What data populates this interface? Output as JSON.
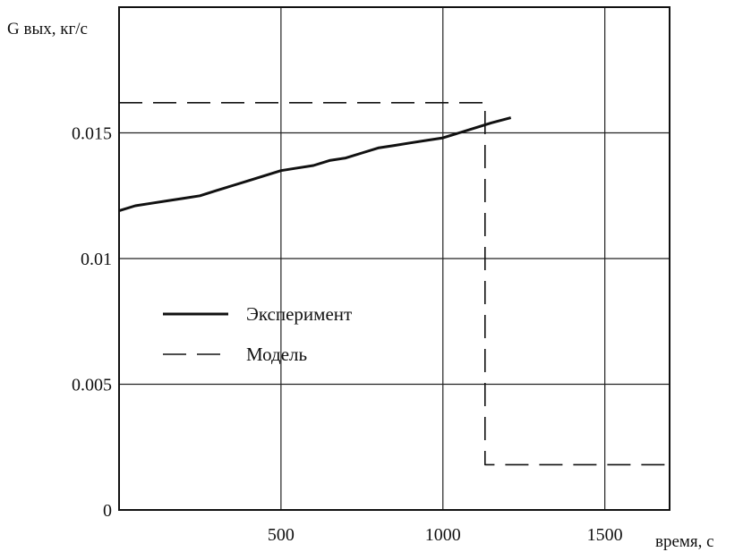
{
  "chart_data": {
    "type": "line",
    "title": "",
    "ylabel": "G вых, кг/с",
    "xlabel": "время, с",
    "xlim": [
      0,
      1700
    ],
    "ylim": [
      0,
      0.02
    ],
    "x_ticks": [
      500,
      1000,
      1500
    ],
    "x_tick_labels": [
      "500",
      "1000",
      "1500"
    ],
    "y_ticks": [
      0,
      0.005,
      0.01,
      0.015
    ],
    "y_tick_labels": [
      "0",
      "0.005",
      "0.01",
      "0.015"
    ],
    "grid": true,
    "legend_position": "center-left",
    "series": [
      {
        "name": "Эксперимент",
        "style": "solid",
        "color": "#111111",
        "x": [
          0,
          50,
          100,
          150,
          200,
          250,
          300,
          350,
          400,
          450,
          500,
          550,
          600,
          650,
          700,
          750,
          800,
          850,
          900,
          950,
          1000,
          1050,
          1100,
          1150,
          1210
        ],
        "y": [
          0.0119,
          0.0121,
          0.0122,
          0.0123,
          0.0124,
          0.0125,
          0.0127,
          0.0129,
          0.0131,
          0.0133,
          0.0135,
          0.0136,
          0.0137,
          0.0139,
          0.014,
          0.0142,
          0.0144,
          0.0145,
          0.0146,
          0.0147,
          0.0148,
          0.015,
          0.0152,
          0.0154,
          0.0156
        ]
      },
      {
        "name": "Модель",
        "style": "dashed",
        "color": "#111111",
        "x": [
          0,
          1130,
          1130,
          1700
        ],
        "y": [
          0.0162,
          0.0162,
          0.0018,
          0.0018
        ]
      }
    ]
  }
}
